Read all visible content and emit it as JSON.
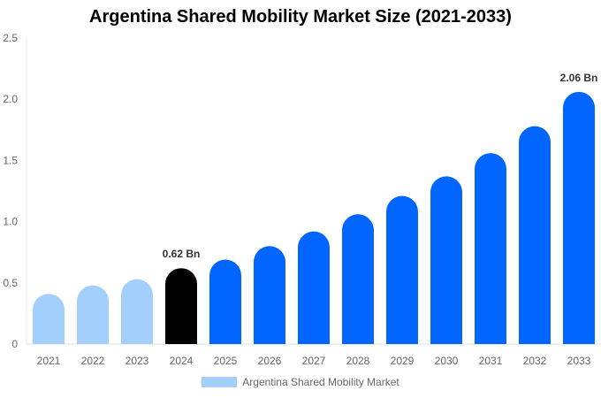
{
  "chart_data": {
    "type": "bar",
    "title": "Argentina Shared Mobility Market Size (2021-2033)",
    "categories": [
      "2021",
      "2022",
      "2023",
      "2024",
      "2025",
      "2026",
      "2027",
      "2028",
      "2029",
      "2030",
      "2031",
      "2032",
      "2033"
    ],
    "series": [
      {
        "name": "Argentina Shared Mobility Market",
        "values": [
          0.41,
          0.48,
          0.53,
          0.62,
          0.69,
          0.8,
          0.92,
          1.06,
          1.21,
          1.37,
          1.56,
          1.78,
          2.06
        ]
      }
    ],
    "bar_colors": [
      "#a3cffd",
      "#a3cffd",
      "#a3cffd",
      "#000000",
      "#0066ff",
      "#0066ff",
      "#0066ff",
      "#0066ff",
      "#0066ff",
      "#0066ff",
      "#0066ff",
      "#0066ff",
      "#0066ff"
    ],
    "data_labels": {
      "2024": "0.62 Bn",
      "2033": "2.06 Bn"
    },
    "yticks": [
      "0",
      "0.5",
      "1.0",
      "1.5",
      "2.0",
      "2.5"
    ],
    "ylim": [
      0,
      2.5
    ],
    "xlabel": "",
    "ylabel": "",
    "grid": false,
    "legend_position": "bottom",
    "legend_color": "#a3cffd"
  }
}
